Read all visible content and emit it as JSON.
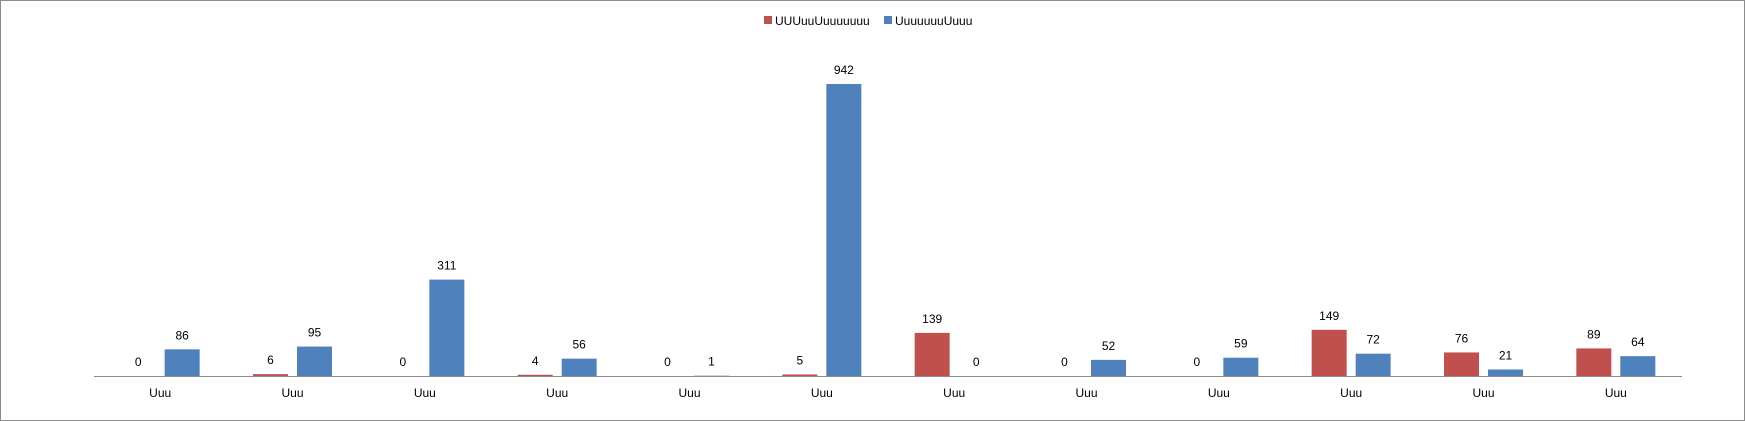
{
  "chart_data": {
    "type": "bar",
    "categories": [
      "Uuu",
      "Uuu",
      "Uuu",
      "Uuu",
      "Uuu",
      "Uuu",
      "Uuu",
      "Uuu",
      "Uuu",
      "Uuu",
      "Uuu",
      "Uuu"
    ],
    "series": [
      {
        "name": "UUUuuUuuuuuuu",
        "color": "#c0504d",
        "values": [
          0,
          6,
          0,
          4,
          0,
          5,
          139,
          0,
          0,
          149,
          76,
          89
        ],
        "labels": [
          "0",
          "6",
          "0",
          "4",
          "0",
          "5",
          "139",
          "0",
          "0",
          "149",
          "76",
          "89"
        ]
      },
      {
        "name": "UuuuuuuUuuu",
        "color": "#4f81bd",
        "values": [
          86,
          95,
          311,
          56,
          1,
          942,
          0,
          52,
          59,
          72,
          21,
          64
        ],
        "labels": [
          "86",
          "95",
          "311",
          "56",
          "1",
          "942",
          "0",
          "52",
          "59",
          "72",
          "21",
          "64"
        ]
      }
    ],
    "ylim": [
      0,
      1000
    ],
    "grid": false,
    "legend_position": "top"
  }
}
